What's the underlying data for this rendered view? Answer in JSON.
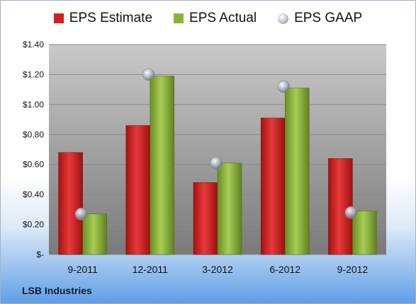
{
  "chart_data": {
    "type": "bar",
    "categories": [
      "9-2011",
      "12-2011",
      "3-2012",
      "6-2012",
      "9-2012"
    ],
    "series": [
      {
        "name": "EPS Estimate",
        "kind": "bar",
        "color": "#d21f1f",
        "values": [
          0.68,
          0.86,
          0.48,
          0.91,
          0.64
        ]
      },
      {
        "name": "EPS Actual",
        "kind": "bar",
        "color": "#8bb33a",
        "values": [
          0.27,
          1.19,
          0.61,
          1.11,
          0.29
        ]
      },
      {
        "name": "EPS GAAP",
        "kind": "marker",
        "color": "#b7bec7",
        "values": [
          0.27,
          1.2,
          0.61,
          1.12,
          0.28
        ]
      }
    ],
    "yticks": [
      0,
      0.2,
      0.4,
      0.6,
      0.8,
      1.0,
      1.2,
      1.4
    ],
    "ytick_labels": [
      "$-",
      "$0.20",
      "$0.40",
      "$0.60",
      "$0.80",
      "$1.00",
      "$1.20",
      "$1.40"
    ],
    "ylim": [
      0,
      1.4
    ],
    "grid": true,
    "legend_position": "top-center"
  },
  "footer": {
    "company": "LSB Industries"
  }
}
